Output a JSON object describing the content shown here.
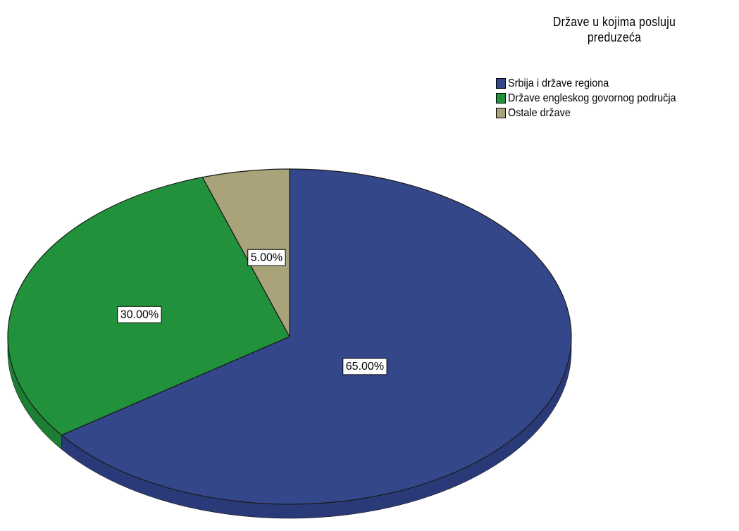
{
  "chart_data": {
    "type": "pie",
    "title": "Države u kojima posluju preduzeća",
    "series": [
      {
        "name": "Srbija i države regiona",
        "value": 65.0,
        "label": "65.00%",
        "color": "#34478a",
        "side_color": "#2a3a78"
      },
      {
        "name": "Države engleskog govornog područja",
        "value": 30.0,
        "label": "30.00%",
        "color": "#21913c",
        "side_color": "#1c7f33"
      },
      {
        "name": "Ostale države",
        "value": 5.0,
        "label": "5.00%",
        "color": "#a9a37a",
        "side_color": "#8f8a64"
      }
    ],
    "legend_position": "top-right",
    "style": "3d"
  },
  "legend": {
    "title_line1": "Države u kojima posluju",
    "title_line2": "preduzeća",
    "items": [
      {
        "label": "Srbija i države regiona",
        "color": "#34478a"
      },
      {
        "label": "Države engleskog govornog područja",
        "color": "#21913c"
      },
      {
        "label": "Ostale države",
        "color": "#a9a37a"
      }
    ]
  }
}
